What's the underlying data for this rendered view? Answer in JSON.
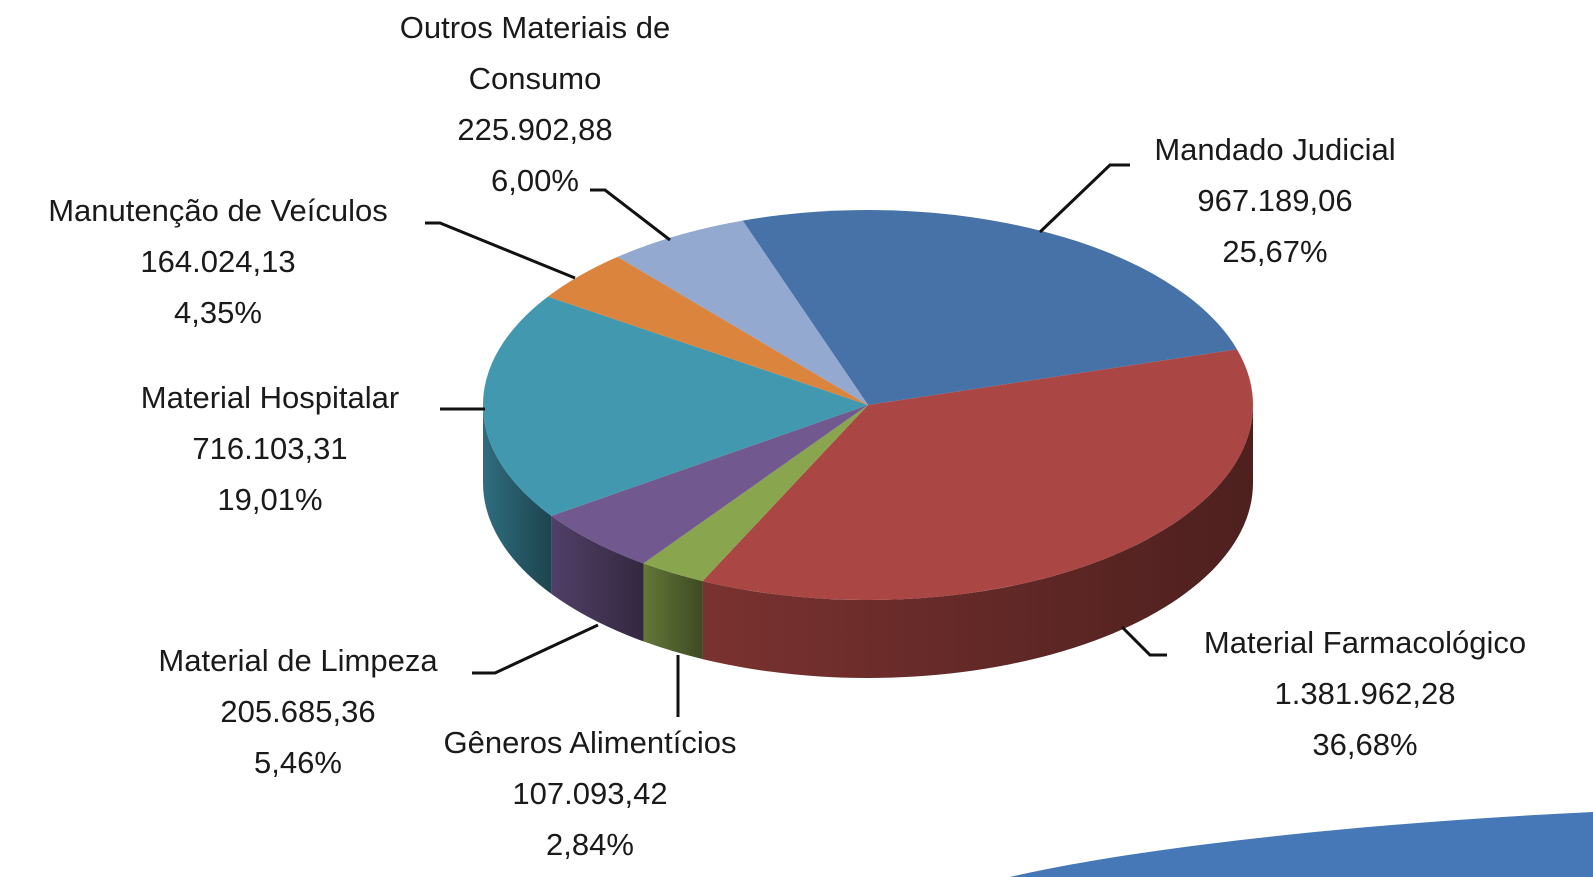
{
  "chart_data": {
    "type": "pie3d",
    "categories": [
      "Mandado Judicial",
      "Material Farmacológico",
      "Gêneros Alimentícios",
      "Material de Limpeza",
      "Material Hospitalar",
      "Manutenção de Veículos",
      "Outros Materiais de Consumo"
    ],
    "values": [
      967189.06,
      1381962.28,
      107093.42,
      205685.36,
      716103.31,
      164024.13,
      225902.88
    ],
    "value_labels": [
      "967.189,06",
      "1.381.962,28",
      "107.093,42",
      "205.685,36",
      "716.103,31",
      "164.024,13",
      "225.902,88"
    ],
    "percentages": [
      25.67,
      36.68,
      2.84,
      5.46,
      19.01,
      4.35,
      6.0
    ],
    "percentage_labels": [
      "25,67%",
      "36,68%",
      "2,84%",
      "5,46%",
      "19,01%",
      "4,35%",
      "6,00%"
    ],
    "colors": [
      "#4672a8",
      "#aa4643",
      "#89a54e",
      "#71588f",
      "#4198af",
      "#db843d",
      "#93a9cf"
    ]
  }
}
